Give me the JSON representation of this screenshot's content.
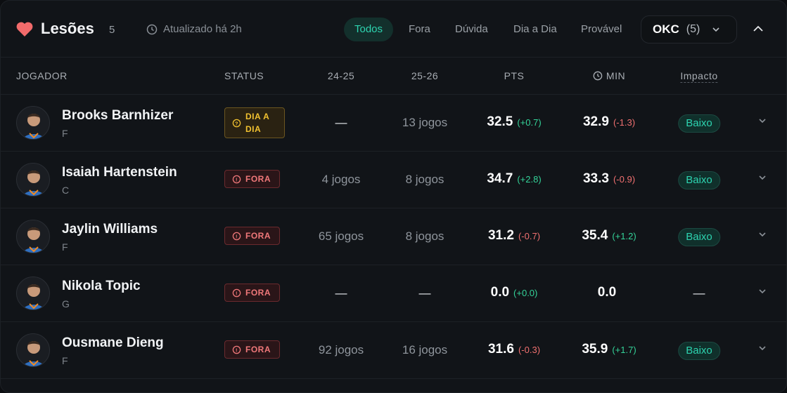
{
  "header": {
    "title": "Lesões",
    "count": "5",
    "updated": "Atualizado há 2h",
    "heart_color": "#f26b6b",
    "tabs": [
      {
        "label": "Todos",
        "active": true
      },
      {
        "label": "Fora"
      },
      {
        "label": "Dúvida"
      },
      {
        "label": "Dia a Dia"
      },
      {
        "label": "Provável"
      }
    ],
    "team": {
      "code": "OKC",
      "count": "(5)"
    }
  },
  "columns": {
    "player": "JOGADOR",
    "status": "STATUS",
    "s1": "24-25",
    "s2": "25-26",
    "pts": "PTS",
    "min": "MIN",
    "impact": "Impacto"
  },
  "rows": [
    {
      "name": "Brooks Barnhizer",
      "pos": "F",
      "status": "DIA A DIA",
      "status_type": "day",
      "s1": "—",
      "s2": "13 jogos",
      "pts": "32.5",
      "pts_d": "(+0.7)",
      "min": "32.9",
      "min_d": "(-1.3)",
      "impact": "Baixo"
    },
    {
      "name": "Isaiah Hartenstein",
      "pos": "C",
      "status": "FORA",
      "status_type": "out",
      "s1": "4 jogos",
      "s2": "8 jogos",
      "pts": "34.7",
      "pts_d": "(+2.8)",
      "min": "33.3",
      "min_d": "(-0.9)",
      "impact": "Baixo"
    },
    {
      "name": "Jaylin Williams",
      "pos": "F",
      "status": "FORA",
      "status_type": "out",
      "s1": "65 jogos",
      "s2": "8 jogos",
      "pts": "31.2",
      "pts_d": "(-0.7)",
      "min": "35.4",
      "min_d": "(+1.2)",
      "impact": "Baixo"
    },
    {
      "name": "Nikola Topic",
      "pos": "G",
      "status": "FORA",
      "status_type": "out",
      "s1": "—",
      "s2": "—",
      "pts": "0.0",
      "pts_d": "(+0.0)",
      "min": "0.0",
      "min_d": "",
      "impact": "—"
    },
    {
      "name": "Ousmane Dieng",
      "pos": "F",
      "status": "FORA",
      "status_type": "out",
      "s1": "92 jogos",
      "s2": "16 jogos",
      "pts": "31.6",
      "pts_d": "(-0.3)",
      "min": "35.9",
      "min_d": "(+1.7)",
      "impact": "Baixo"
    }
  ]
}
